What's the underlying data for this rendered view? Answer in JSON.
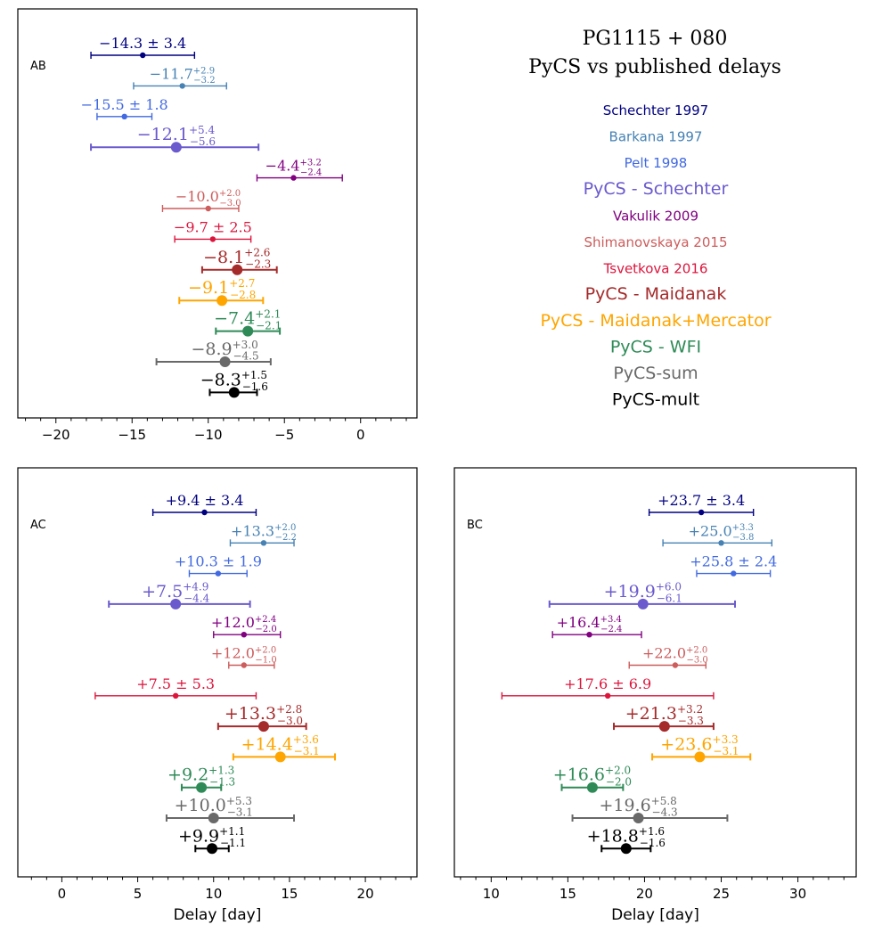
{
  "figure_title": {
    "line1": "PG1115 + 080",
    "line2": "PyCS vs published delays"
  },
  "chart_data": [
    {
      "type": "errorbar",
      "panel_label": "AB",
      "xlabel": "",
      "xlim": [
        -22.5,
        3.7
      ],
      "xticks": [
        -20,
        -15,
        -10,
        -5,
        0
      ],
      "xtick_labels": [
        "−20",
        "−15",
        "−10",
        "−5",
        "0"
      ],
      "points": [
        {
          "series": "Schechter 1997",
          "value": -14.3,
          "err_minus": 3.4,
          "err_plus": 3.4,
          "label_main": "−14.3 ± 3.4",
          "label_sup": "",
          "label_sub": ""
        },
        {
          "series": "Barkana 1997",
          "value": -11.7,
          "err_minus": 3.2,
          "err_plus": 2.9,
          "label_main": "−11.7",
          "label_sup": "+2.9",
          "label_sub": "−3.2"
        },
        {
          "series": "Pelt 1998",
          "value": -15.5,
          "err_minus": 1.8,
          "err_plus": 1.8,
          "label_main": "−15.5 ± 1.8",
          "label_sup": "",
          "label_sub": ""
        },
        {
          "series": "PyCS - Schechter",
          "value": -12.1,
          "err_minus": 5.6,
          "err_plus": 5.4,
          "label_main": "−12.1",
          "label_sup": "+5.4",
          "label_sub": "−5.6"
        },
        {
          "series": "Vakulik 2009",
          "value": -4.4,
          "err_minus": 2.4,
          "err_plus": 3.2,
          "label_main": "−4.4",
          "label_sup": "+3.2",
          "label_sub": "−2.4"
        },
        {
          "series": "Shimanovskaya 2015",
          "value": -10.0,
          "err_minus": 3.0,
          "err_plus": 2.0,
          "label_main": "−10.0",
          "label_sup": "+2.0",
          "label_sub": "−3.0"
        },
        {
          "series": "Tsvetkova 2016",
          "value": -9.7,
          "err_minus": 2.5,
          "err_plus": 2.5,
          "label_main": "−9.7 ± 2.5",
          "label_sup": "",
          "label_sub": ""
        },
        {
          "series": "PyCS - Maidanak",
          "value": -8.1,
          "err_minus": 2.3,
          "err_plus": 2.6,
          "label_main": "−8.1",
          "label_sup": "+2.6",
          "label_sub": "−2.3"
        },
        {
          "series": "PyCS - Maidanak+Mercator",
          "value": -9.1,
          "err_minus": 2.8,
          "err_plus": 2.7,
          "label_main": "−9.1",
          "label_sup": "+2.7",
          "label_sub": "−2.8"
        },
        {
          "series": "PyCS - WFI",
          "value": -7.4,
          "err_minus": 2.1,
          "err_plus": 2.1,
          "label_main": "−7.4",
          "label_sup": "+2.1",
          "label_sub": "−2.1"
        },
        {
          "series": "PyCS-sum",
          "value": -8.9,
          "err_minus": 4.5,
          "err_plus": 3.0,
          "label_main": "−8.9",
          "label_sup": "+3.0",
          "label_sub": "−4.5"
        },
        {
          "series": "PyCS-mult",
          "value": -8.3,
          "err_minus": 1.6,
          "err_plus": 1.5,
          "label_main": "−8.3",
          "label_sup": "+1.5",
          "label_sub": "−1.6"
        }
      ]
    },
    {
      "type": "errorbar",
      "panel_label": "AC",
      "xlabel": "Delay [day]",
      "xlim": [
        -2.9,
        23.4
      ],
      "xticks": [
        0,
        5,
        10,
        15,
        20
      ],
      "xtick_labels": [
        "0",
        "5",
        "10",
        "15",
        "20"
      ],
      "points": [
        {
          "series": "Schechter 1997",
          "value": 9.4,
          "err_minus": 3.4,
          "err_plus": 3.4,
          "label_main": "+9.4 ± 3.4",
          "label_sup": "",
          "label_sub": ""
        },
        {
          "series": "Barkana 1997",
          "value": 13.3,
          "err_minus": 2.2,
          "err_plus": 2.0,
          "label_main": "+13.3",
          "label_sup": "+2.0",
          "label_sub": "−2.2"
        },
        {
          "series": "Pelt 1998",
          "value": 10.3,
          "err_minus": 1.9,
          "err_plus": 1.9,
          "label_main": "+10.3 ± 1.9",
          "label_sup": "",
          "label_sub": ""
        },
        {
          "series": "PyCS - Schechter",
          "value": 7.5,
          "err_minus": 4.4,
          "err_plus": 4.9,
          "label_main": "+7.5",
          "label_sup": "+4.9",
          "label_sub": "−4.4"
        },
        {
          "series": "Vakulik 2009",
          "value": 12.0,
          "err_minus": 2.0,
          "err_plus": 2.4,
          "label_main": "+12.0",
          "label_sup": "+2.4",
          "label_sub": "−2.0"
        },
        {
          "series": "Shimanovskaya 2015",
          "value": 12.0,
          "err_minus": 1.0,
          "err_plus": 2.0,
          "label_main": "+12.0",
          "label_sup": "+2.0",
          "label_sub": "−1.0"
        },
        {
          "series": "Tsvetkova 2016",
          "value": 7.5,
          "err_minus": 5.3,
          "err_plus": 5.3,
          "label_main": "+7.5 ± 5.3",
          "label_sup": "",
          "label_sub": ""
        },
        {
          "series": "PyCS - Maidanak",
          "value": 13.3,
          "err_minus": 3.0,
          "err_plus": 2.8,
          "label_main": "+13.3",
          "label_sup": "+2.8",
          "label_sub": "−3.0"
        },
        {
          "series": "PyCS - Maidanak+Mercator",
          "value": 14.4,
          "err_minus": 3.1,
          "err_plus": 3.6,
          "label_main": "+14.4",
          "label_sup": "+3.6",
          "label_sub": "−3.1"
        },
        {
          "series": "PyCS - WFI",
          "value": 9.2,
          "err_minus": 1.3,
          "err_plus": 1.3,
          "label_main": "+9.2",
          "label_sup": "+1.3",
          "label_sub": "−1.3"
        },
        {
          "series": "PyCS-sum",
          "value": 10.0,
          "err_minus": 3.1,
          "err_plus": 5.3,
          "label_main": "+10.0",
          "label_sup": "+5.3",
          "label_sub": "−3.1"
        },
        {
          "series": "PyCS-mult",
          "value": 9.9,
          "err_minus": 1.1,
          "err_plus": 1.1,
          "label_main": "+9.9",
          "label_sup": "+1.1",
          "label_sub": "−1.1"
        }
      ]
    },
    {
      "type": "errorbar",
      "panel_label": "BC",
      "xlabel": "Delay [day]",
      "xlim": [
        7.6,
        33.8
      ],
      "xticks": [
        10,
        15,
        20,
        25,
        30
      ],
      "xtick_labels": [
        "10",
        "15",
        "20",
        "25",
        "30"
      ],
      "points": [
        {
          "series": "Schechter 1997",
          "value": 23.7,
          "err_minus": 3.4,
          "err_plus": 3.4,
          "label_main": "+23.7 ± 3.4",
          "label_sup": "",
          "label_sub": ""
        },
        {
          "series": "Barkana 1997",
          "value": 25.0,
          "err_minus": 3.8,
          "err_plus": 3.3,
          "label_main": "+25.0",
          "label_sup": "+3.3",
          "label_sub": "−3.8"
        },
        {
          "series": "Pelt 1998",
          "value": 25.8,
          "err_minus": 2.4,
          "err_plus": 2.4,
          "label_main": "+25.8 ± 2.4",
          "label_sup": "",
          "label_sub": ""
        },
        {
          "series": "PyCS - Schechter",
          "value": 19.9,
          "err_minus": 6.1,
          "err_plus": 6.0,
          "label_main": "+19.9",
          "label_sup": "+6.0",
          "label_sub": "−6.1"
        },
        {
          "series": "Vakulik 2009",
          "value": 16.4,
          "err_minus": 2.4,
          "err_plus": 3.4,
          "label_main": "+16.4",
          "label_sup": "+3.4",
          "label_sub": "−2.4"
        },
        {
          "series": "Shimanovskaya 2015",
          "value": 22.0,
          "err_minus": 3.0,
          "err_plus": 2.0,
          "label_main": "+22.0",
          "label_sup": "+2.0",
          "label_sub": "−3.0"
        },
        {
          "series": "Tsvetkova 2016",
          "value": 17.6,
          "err_minus": 6.9,
          "err_plus": 6.9,
          "label_main": "+17.6 ± 6.9",
          "label_sup": "",
          "label_sub": ""
        },
        {
          "series": "PyCS - Maidanak",
          "value": 21.3,
          "err_minus": 3.3,
          "err_plus": 3.2,
          "label_main": "+21.3",
          "label_sup": "+3.2",
          "label_sub": "−3.3"
        },
        {
          "series": "PyCS - Maidanak+Mercator",
          "value": 23.6,
          "err_minus": 3.1,
          "err_plus": 3.3,
          "label_main": "+23.6",
          "label_sup": "+3.3",
          "label_sub": "−3.1"
        },
        {
          "series": "PyCS - WFI",
          "value": 16.6,
          "err_minus": 2.0,
          "err_plus": 2.0,
          "label_main": "+16.6",
          "label_sup": "+2.0",
          "label_sub": "−2.0"
        },
        {
          "series": "PyCS-sum",
          "value": 19.6,
          "err_minus": 4.3,
          "err_plus": 5.8,
          "label_main": "+19.6",
          "label_sup": "+5.8",
          "label_sub": "−4.3"
        },
        {
          "series": "PyCS-mult",
          "value": 18.8,
          "err_minus": 1.6,
          "err_plus": 1.6,
          "label_main": "+18.8",
          "label_sup": "+1.6",
          "label_sub": "−1.6"
        }
      ]
    }
  ],
  "legend": [
    {
      "name": "Schechter 1997",
      "color": "#000080"
    },
    {
      "name": "Barkana 1997",
      "color": "#4682b4"
    },
    {
      "name": "Pelt 1998",
      "color": "#4169e1"
    },
    {
      "name": "PyCS - Schechter",
      "color": "#6a5acd"
    },
    {
      "name": "Vakulik 2009",
      "color": "#800080"
    },
    {
      "name": "Shimanovskaya 2015",
      "color": "#cd5c5c"
    },
    {
      "name": "Tsvetkova 2016",
      "color": "#dc143c"
    },
    {
      "name": "PyCS - Maidanak",
      "color": "#a52a2a"
    },
    {
      "name": "PyCS - Maidanak+Mercator",
      "color": "#ffa500"
    },
    {
      "name": "PyCS - WFI",
      "color": "#2e8b57"
    },
    {
      "name": "PyCS-sum",
      "color": "#696969"
    },
    {
      "name": "PyCS-mult",
      "color": "#000000"
    }
  ],
  "series_style": {
    "Schechter 1997": {
      "marker": "small"
    },
    "Barkana 1997": {
      "marker": "small"
    },
    "Pelt 1998": {
      "marker": "small"
    },
    "PyCS - Schechter": {
      "marker": "large"
    },
    "Vakulik 2009": {
      "marker": "small"
    },
    "Shimanovskaya 2015": {
      "marker": "small"
    },
    "Tsvetkova 2016": {
      "marker": "small"
    },
    "PyCS - Maidanak": {
      "marker": "large"
    },
    "PyCS - Maidanak+Mercator": {
      "marker": "large"
    },
    "PyCS - WFI": {
      "marker": "large"
    },
    "PyCS-sum": {
      "marker": "large"
    },
    "PyCS-mult": {
      "marker": "large"
    }
  }
}
